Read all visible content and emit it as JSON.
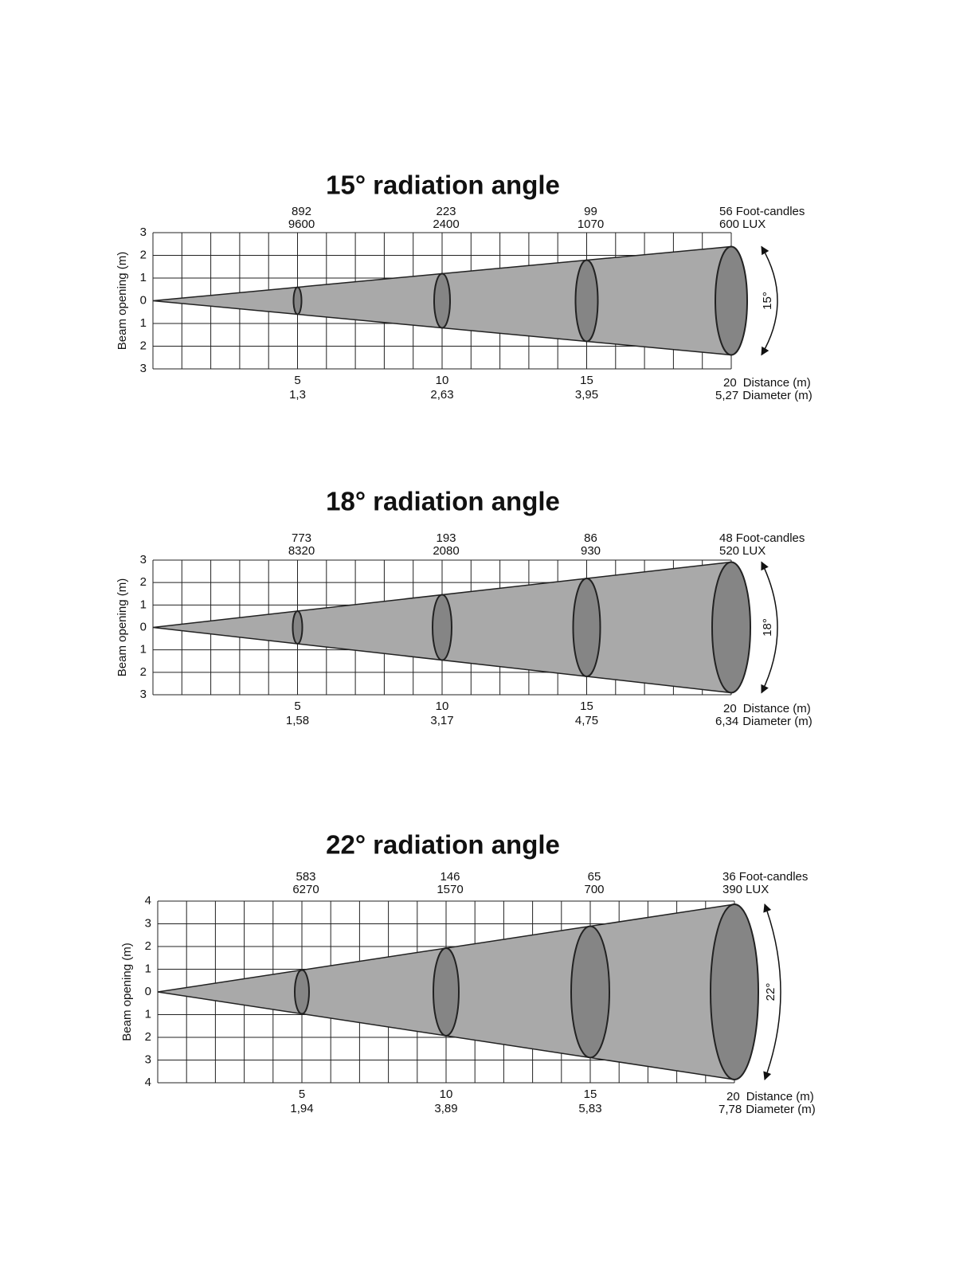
{
  "diagrams": [
    {
      "title": "15° radiation angle",
      "y_axis_label": "Beam opening (m)",
      "y_labels": [
        "3",
        "2",
        "1",
        "0",
        "1",
        "2",
        "3"
      ],
      "points": [
        {
          "foot_candles": "892",
          "lux": "9600",
          "distance": "5",
          "diameter": "1,3"
        },
        {
          "foot_candles": "223",
          "lux": "2400",
          "distance": "10",
          "diameter": "2,63"
        },
        {
          "foot_candles": "99",
          "lux": "1070",
          "distance": "15",
          "diameter": "3,95"
        },
        {
          "foot_candles": "56",
          "lux": "600",
          "distance": "20",
          "diameter": "5,27"
        }
      ],
      "foot_candles_unit": "Foot-candles",
      "lux_unit": "LUX",
      "distance_unit": "Distance (m)",
      "diameter_unit": "Diameter (m)",
      "angle_label": "15°"
    },
    {
      "title": "18° radiation angle",
      "y_axis_label": "Beam opening (m)",
      "y_labels": [
        "3",
        "2",
        "1",
        "0",
        "1",
        "2",
        "3"
      ],
      "points": [
        {
          "foot_candles": "773",
          "lux": "8320",
          "distance": "5",
          "diameter": "1,58"
        },
        {
          "foot_candles": "193",
          "lux": "2080",
          "distance": "10",
          "diameter": "3,17"
        },
        {
          "foot_candles": "86",
          "lux": "930",
          "distance": "15",
          "diameter": "4,75"
        },
        {
          "foot_candles": "48",
          "lux": "520",
          "distance": "20",
          "diameter": "6,34"
        }
      ],
      "foot_candles_unit": "Foot-candles",
      "lux_unit": "LUX",
      "distance_unit": "Distance (m)",
      "diameter_unit": "Diameter (m)",
      "angle_label": "18°"
    },
    {
      "title": "22° radiation angle",
      "y_axis_label": "Beam opening (m)",
      "y_labels": [
        "4",
        "3",
        "2",
        "1",
        "0",
        "1",
        "2",
        "3",
        "4"
      ],
      "points": [
        {
          "foot_candles": "583",
          "lux": "6270",
          "distance": "5",
          "diameter": "1,94"
        },
        {
          "foot_candles": "146",
          "lux": "1570",
          "distance": "10",
          "diameter": "3,89"
        },
        {
          "foot_candles": "65",
          "lux": "700",
          "distance": "15",
          "diameter": "5,83"
        },
        {
          "foot_candles": "36",
          "lux": "390",
          "distance": "20",
          "diameter": "7,78"
        }
      ],
      "foot_candles_unit": "Foot-candles",
      "lux_unit": "LUX",
      "distance_unit": "Distance (m)",
      "diameter_unit": "Diameter (m)",
      "angle_label": "22°"
    }
  ]
}
